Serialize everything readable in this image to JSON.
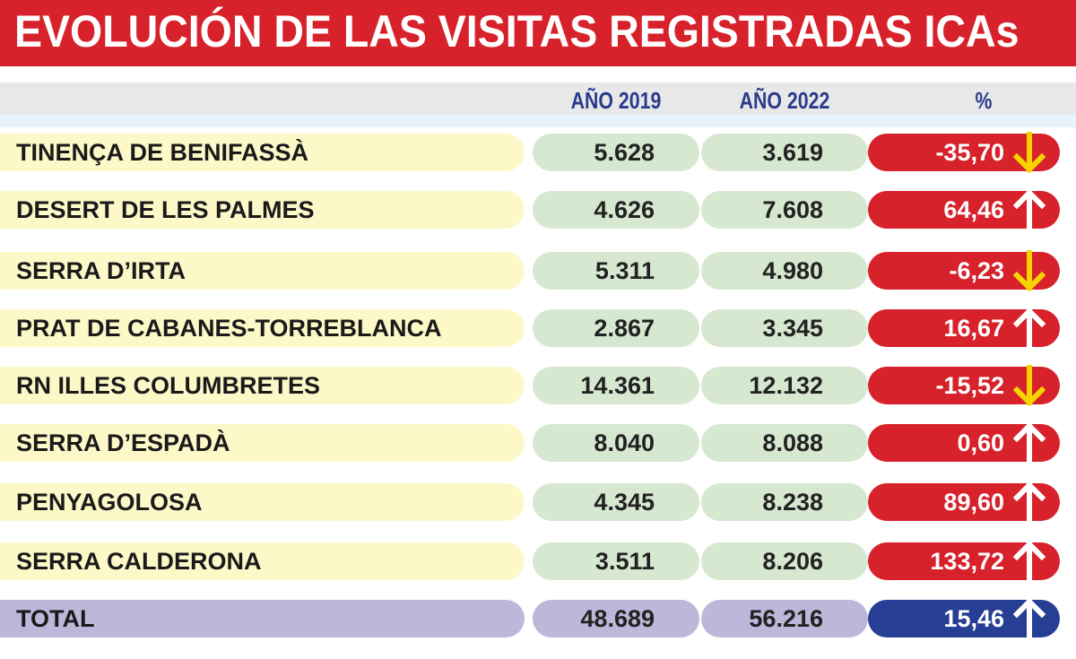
{
  "title": "EVOLUCIÓN DE LAS VISITAS REGISTRADAS ICAs",
  "headers": {
    "col1": "AÑO 2019",
    "col2": "AÑO 2022",
    "col3": "%"
  },
  "colors": {
    "title_bg": "#d7222b",
    "pct_bg": "#d7222b",
    "total_pct_bg": "#263e93",
    "name_bg": "#fdf8c8",
    "num_bg": "#d6e8cf",
    "total_bg": "#bcb8d9",
    "down_arrow": "#f5d400",
    "up_arrow": "#ffffff"
  },
  "rows": [
    {
      "name": "TINENÇA DE BENIFASSÀ",
      "y2019": "5.628",
      "y2022": "3.619",
      "pct": "-35,70",
      "trend": "down"
    },
    {
      "name": "DESERT DE LES PALMES",
      "y2019": "4.626",
      "y2022": "7.608",
      "pct": "64,46",
      "trend": "up"
    },
    {
      "name": "SERRA D’IRTA",
      "y2019": "5.311",
      "y2022": "4.980",
      "pct": "-6,23",
      "trend": "down"
    },
    {
      "name": "PRAT DE CABANES-TORREBLANCA",
      "y2019": "2.867",
      "y2022": "3.345",
      "pct": "16,67",
      "trend": "up"
    },
    {
      "name": "RN ILLES COLUMBRETES",
      "y2019": "14.361",
      "y2022": "12.132",
      "pct": "-15,52",
      "trend": "down"
    },
    {
      "name": "SERRA D’ESPADÀ",
      "y2019": "8.040",
      "y2022": "8.088",
      "pct": "0,60",
      "trend": "up"
    },
    {
      "name": "PENYAGOLOSA",
      "y2019": "4.345",
      "y2022": "8.238",
      "pct": "89,60",
      "trend": "up"
    },
    {
      "name": "SERRA CALDERONA",
      "y2019": "3.511",
      "y2022": "8.206",
      "pct": "133,72",
      "trend": "up"
    }
  ],
  "total": {
    "name": "TOTAL",
    "y2019": "48.689",
    "y2022": "56.216",
    "pct": "15,46",
    "trend": "up"
  },
  "chart_data": {
    "type": "table",
    "title": "EVOLUCIÓN DE LAS VISITAS REGISTRADAS ICAs",
    "columns": [
      "",
      "AÑO 2019",
      "AÑO 2022",
      "%"
    ],
    "categories": [
      "TINENÇA DE BENIFASSÀ",
      "DESERT DE LES PALMES",
      "SERRA D’IRTA",
      "PRAT DE CABANES-TORREBLANCA",
      "RN ILLES COLUMBRETES",
      "SERRA D’ESPADÀ",
      "PENYAGOLOSA",
      "SERRA CALDERONA",
      "TOTAL"
    ],
    "series": [
      {
        "name": "AÑO 2019",
        "values": [
          5628,
          4626,
          5311,
          2867,
          14361,
          8040,
          4345,
          3511,
          48689
        ]
      },
      {
        "name": "AÑO 2022",
        "values": [
          3619,
          7608,
          4980,
          3345,
          12132,
          8088,
          8238,
          8206,
          56216
        ]
      },
      {
        "name": "%",
        "values": [
          -35.7,
          64.46,
          -6.23,
          16.67,
          -15.52,
          0.6,
          89.6,
          133.72,
          15.46
        ]
      }
    ]
  }
}
